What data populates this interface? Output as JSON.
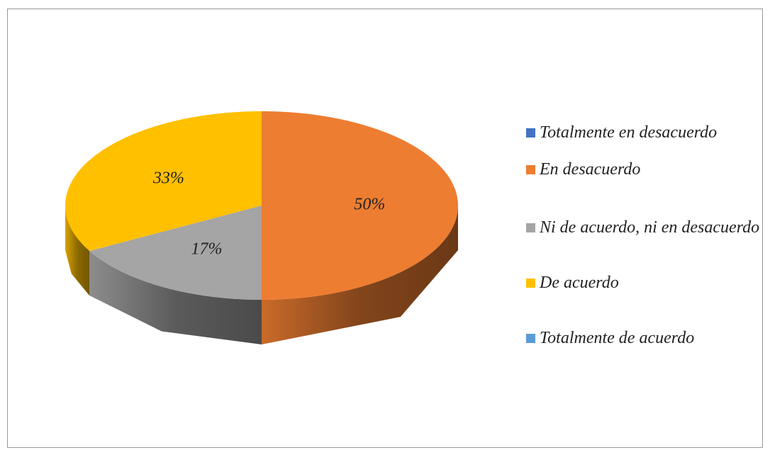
{
  "chart_data": {
    "type": "pie",
    "categories": [
      "Totalmente en desacuerdo",
      "En desacuerdo",
      "Ni de acuerdo, ni en desacuerdo",
      "De acuerdo",
      "Totalmente de acuerdo"
    ],
    "values": [
      0,
      50,
      17,
      33,
      0
    ],
    "value_labels": [
      null,
      "50%",
      "17%",
      "33%",
      null
    ],
    "colors": [
      "#4472c4",
      "#ed7d31",
      "#a5a5a5",
      "#ffc000",
      "#5b9bd5"
    ],
    "legend": "right"
  }
}
